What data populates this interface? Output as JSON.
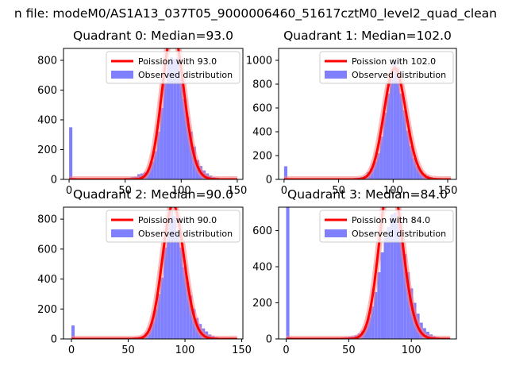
{
  "suptitle": "n file: modeM0/AS1A13_037T05_9000006460_51617cztM0_level2_quad_clean",
  "colors": {
    "bar": "#8080ff",
    "line": "#ff0000",
    "line_glow": "#ff8080",
    "axis": "#000000",
    "legend_edge": "#cccccc"
  },
  "chart_data": [
    {
      "type": "bar",
      "title": "Quadrant 0: Median=93.0",
      "median": 93.0,
      "xlim": [
        -5,
        155
      ],
      "ylim": [
        0,
        880
      ],
      "xticks": [
        0,
        50,
        100,
        150
      ],
      "xtick_labels": [
        "0",
        "50",
        "100",
        "150"
      ],
      "yticks": [
        0,
        200,
        400,
        600,
        800
      ],
      "ytick_labels": [
        "0",
        "200",
        "400",
        "600",
        "800"
      ],
      "bin_width": 2.9,
      "bins_x": [
        0,
        2.9,
        5.8,
        8.7,
        11.6,
        14.5,
        17.4,
        20.3,
        23.2,
        26.1,
        29,
        31.9,
        34.8,
        37.7,
        40.6,
        43.5,
        46.4,
        49.3,
        52.2,
        55.1,
        58,
        60.9,
        63.8,
        66.7,
        69.6,
        72.5,
        75.4,
        78.3,
        81.2,
        84.1,
        87,
        89.9,
        92.8,
        95.7,
        98.6,
        101.5,
        104.4,
        107.3,
        110.2,
        113.1,
        116,
        118.9,
        121.8,
        124.7,
        127.6,
        130.5,
        133.4,
        136.3,
        139.2,
        142.1
      ],
      "bins_y": [
        350,
        10,
        8,
        8,
        8,
        8,
        8,
        8,
        8,
        8,
        8,
        8,
        8,
        8,
        8,
        8,
        8,
        10,
        10,
        15,
        18,
        35,
        40,
        50,
        70,
        120,
        190,
        320,
        480,
        650,
        800,
        820,
        810,
        820,
        680,
        540,
        420,
        320,
        220,
        130,
        90,
        60,
        40,
        25,
        15,
        12,
        8,
        5,
        3,
        2
      ],
      "curve_label": "Poission with 93.0",
      "bars_label": "Observed distribution"
    },
    {
      "type": "bar",
      "title": "Quadrant 1: Median=102.0",
      "median": 102.0,
      "xlim": [
        -5,
        158
      ],
      "ylim": [
        0,
        1100
      ],
      "xticks": [
        0,
        50,
        100,
        150
      ],
      "xtick_labels": [
        "0",
        "50",
        "100",
        "150"
      ],
      "yticks": [
        0,
        200,
        400,
        600,
        800,
        1000
      ],
      "ytick_labels": [
        "0",
        "200",
        "400",
        "600",
        "800",
        "1000"
      ],
      "bin_width": 3.03,
      "bins_x": [
        0,
        3.03,
        6.06,
        9.09,
        12.12,
        15.15,
        18.18,
        21.21,
        24.24,
        27.27,
        30.3,
        33.33,
        36.36,
        39.39,
        42.42,
        45.45,
        48.48,
        51.51,
        54.54,
        57.57,
        60.6,
        63.63,
        66.66,
        69.69,
        72.72,
        75.75,
        78.78,
        81.81,
        84.84,
        87.87,
        90.9,
        93.93,
        96.96,
        99.99,
        103.02,
        106.05,
        109.08,
        112.11,
        115.14,
        118.17,
        121.2,
        124.23,
        127.26,
        130.29,
        133.32,
        136.35,
        139.38,
        142.41,
        145.44,
        148.47
      ],
      "bins_y": [
        110,
        8,
        6,
        6,
        6,
        6,
        6,
        6,
        6,
        6,
        6,
        6,
        6,
        6,
        6,
        6,
        6,
        6,
        6,
        8,
        10,
        12,
        15,
        20,
        30,
        60,
        90,
        150,
        220,
        360,
        560,
        720,
        890,
        1000,
        940,
        720,
        580,
        410,
        280,
        180,
        110,
        70,
        45,
        30,
        20,
        14,
        10,
        7,
        5,
        4
      ],
      "curve_label": "Poission with 102.0",
      "bars_label": "Observed distribution"
    },
    {
      "type": "bar",
      "title": "Quadrant 2: Median=90.0",
      "median": 90.0,
      "xlim": [
        -7,
        151
      ],
      "ylim": [
        0,
        880
      ],
      "xticks": [
        0,
        50,
        100,
        150
      ],
      "xtick_labels": [
        "0",
        "50",
        "100",
        "150"
      ],
      "yticks": [
        0,
        200,
        400,
        600,
        800
      ],
      "ytick_labels": [
        "0",
        "200",
        "400",
        "600",
        "800"
      ],
      "bin_width": 2.8,
      "bins_x": [
        0,
        2.8,
        5.6,
        8.4,
        11.2,
        14,
        16.8,
        19.6,
        22.4,
        25.2,
        28,
        30.8,
        33.6,
        36.4,
        39.2,
        42,
        44.8,
        47.6,
        50.4,
        53.2,
        56,
        58.8,
        61.6,
        64.4,
        67.2,
        70,
        72.8,
        75.6,
        78.4,
        81.2,
        84,
        86.8,
        89.6,
        92.4,
        95.2,
        98,
        100.8,
        103.6,
        106.4,
        109.2,
        112,
        114.8,
        117.6,
        120.4,
        123.2,
        126,
        128.8,
        131.6,
        134.4,
        137.2
      ],
      "bins_y": [
        90,
        8,
        6,
        6,
        6,
        6,
        6,
        6,
        6,
        6,
        6,
        6,
        6,
        6,
        6,
        6,
        6,
        6,
        8,
        10,
        12,
        15,
        20,
        40,
        70,
        120,
        200,
        300,
        410,
        610,
        800,
        860,
        820,
        720,
        610,
        480,
        380,
        290,
        200,
        140,
        100,
        70,
        50,
        30,
        20,
        12,
        8,
        5,
        4,
        3
      ],
      "curve_label": "Poission with 90.0",
      "bars_label": "Observed distribution"
    },
    {
      "type": "bar",
      "title": "Quadrant 3: Median=84.0",
      "median": 84.0,
      "xlim": [
        -6,
        136
      ],
      "ylim": [
        0,
        730
      ],
      "xticks": [
        0,
        50,
        100
      ],
      "xtick_labels": [
        "0",
        "50",
        "100"
      ],
      "yticks": [
        0,
        200,
        400,
        600
      ],
      "ytick_labels": [
        "0",
        "200",
        "400",
        "600"
      ],
      "bin_width": 2.6,
      "bins_x": [
        0,
        2.6,
        5.2,
        7.8,
        10.4,
        13,
        15.6,
        18.2,
        20.8,
        23.4,
        26,
        28.6,
        31.2,
        33.8,
        36.4,
        39,
        41.6,
        44.2,
        46.8,
        49.4,
        52,
        54.6,
        57.2,
        59.8,
        62.4,
        65,
        67.6,
        70.2,
        72.8,
        75.4,
        78,
        80.6,
        83.2,
        85.8,
        88.4,
        91,
        93.6,
        96.2,
        98.8,
        101.4,
        104,
        106.6,
        109.2,
        111.8,
        114.4,
        117,
        119.6,
        122.2,
        124.8,
        127.4
      ],
      "bins_y": [
        730,
        8,
        6,
        6,
        6,
        6,
        6,
        6,
        6,
        6,
        6,
        6,
        6,
        6,
        6,
        6,
        6,
        8,
        10,
        12,
        15,
        20,
        30,
        45,
        70,
        120,
        180,
        260,
        370,
        480,
        560,
        620,
        690,
        700,
        640,
        560,
        470,
        370,
        280,
        200,
        140,
        90,
        60,
        40,
        25,
        15,
        10,
        6,
        4,
        3
      ],
      "curve_label": "Poission with 84.0",
      "bars_label": "Observed distribution"
    }
  ]
}
